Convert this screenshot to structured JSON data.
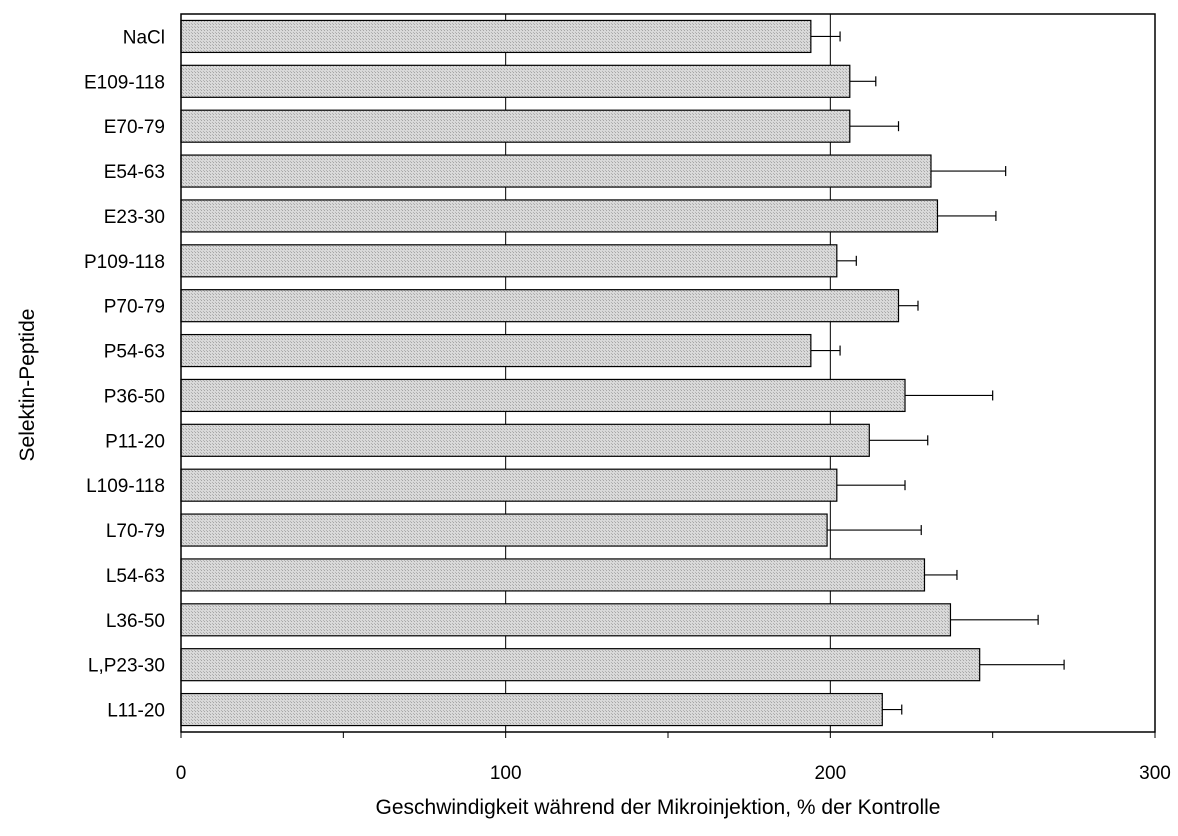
{
  "chart_data": {
    "type": "bar",
    "orientation": "horizontal",
    "categories": [
      "NaCl",
      "E109-118",
      "E70-79",
      "E54-63",
      "E23-30",
      "P109-118",
      "P70-79",
      "P54-63",
      "P36-50",
      "P11-20",
      "L109-118",
      "L70-79",
      "L54-63",
      "L36-50",
      "L,P23-30",
      "L11-20"
    ],
    "values": [
      194,
      206,
      206,
      231,
      233,
      202,
      221,
      194,
      223,
      212,
      202,
      199,
      229,
      237,
      246,
      216
    ],
    "errors": [
      9,
      8,
      15,
      23,
      18,
      6,
      6,
      9,
      27,
      18,
      21,
      29,
      10,
      27,
      26,
      6
    ],
    "xlabel": "Geschwindigkeit während der Mikroinjektion, % der Kontrolle",
    "ylabel": "Selektin-Peptide",
    "xlim": [
      0,
      300
    ],
    "xticks": [
      "0",
      "100",
      "200",
      "300"
    ],
    "grid": "vertical major lines",
    "legend": "none",
    "colors": {
      "bar_fill": "#d9d9d9",
      "bar_hatch": "#a6a6a6",
      "bar_edge": "#000000",
      "axis": "#000000",
      "background": "#ffffff"
    }
  }
}
